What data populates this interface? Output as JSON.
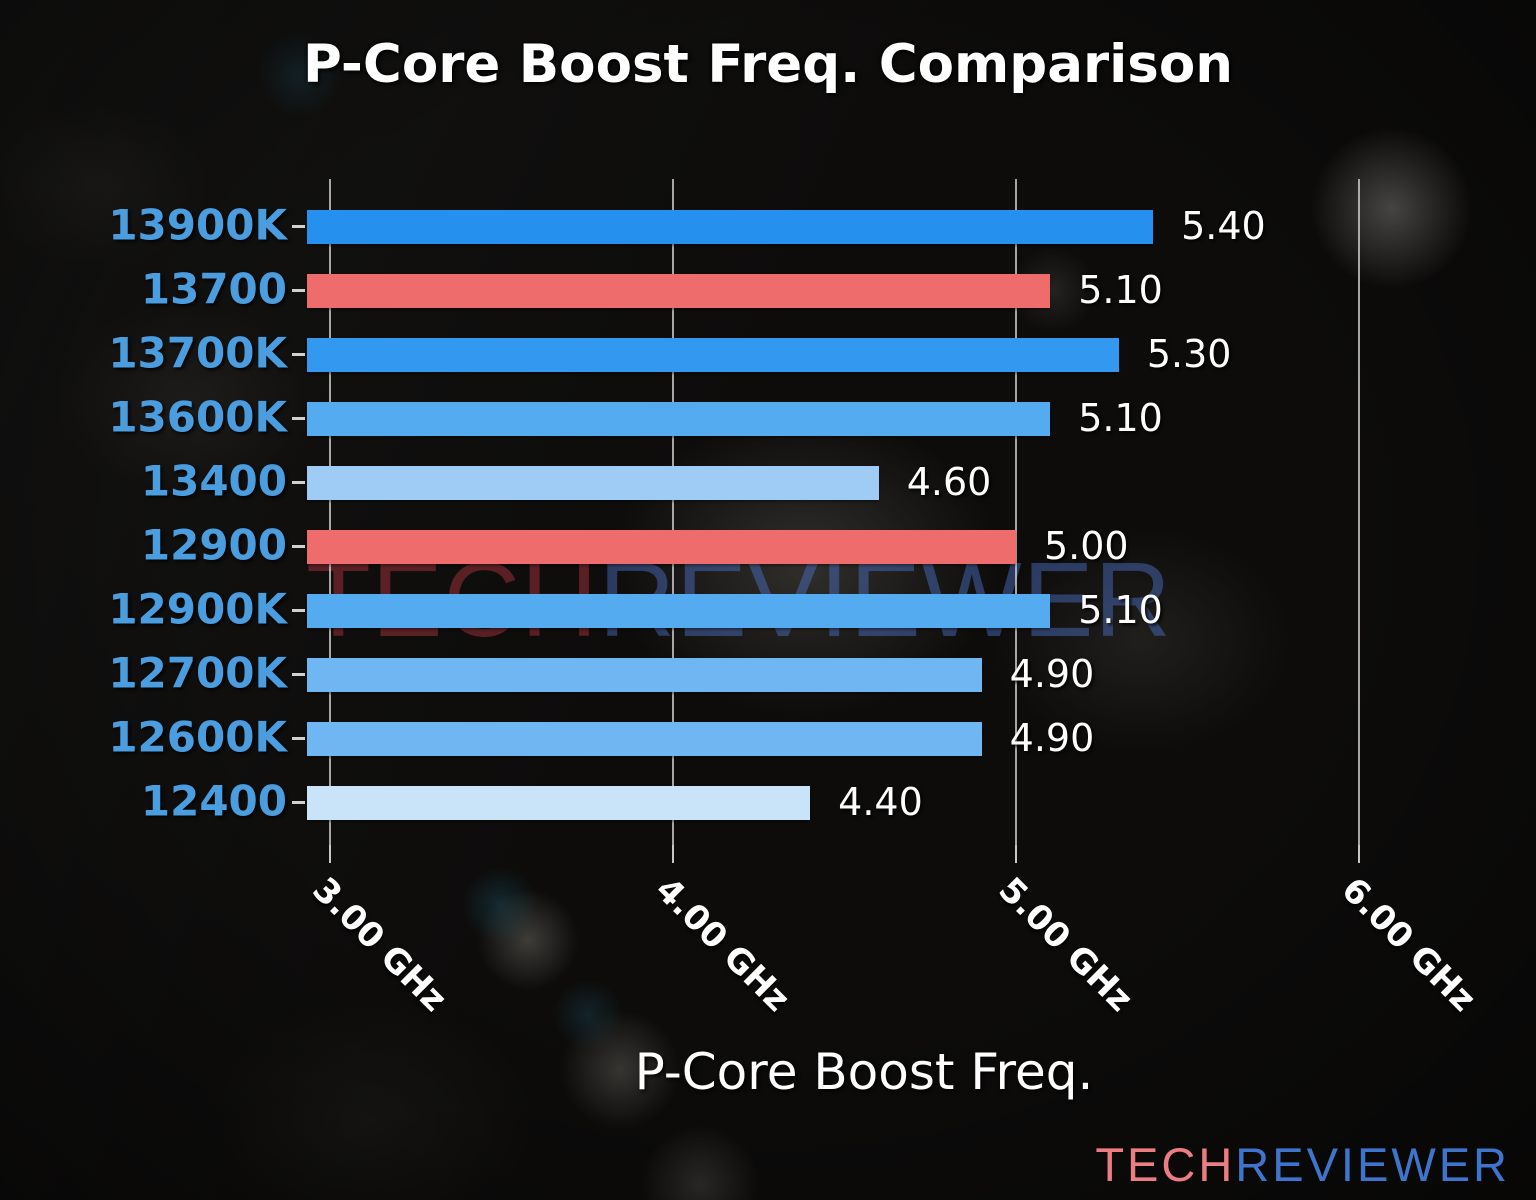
{
  "chart_data": {
    "type": "bar",
    "orientation": "horizontal",
    "title": "P-Core Boost Freq. Comparison",
    "xlabel": "P-Core Boost Freq.",
    "categories": [
      "13900K",
      "13700",
      "13700K",
      "13600K",
      "13400",
      "12900",
      "12900K",
      "12700K",
      "12600K",
      "12400"
    ],
    "values": [
      5.4,
      5.1,
      5.3,
      5.1,
      4.6,
      5.0,
      5.1,
      4.9,
      4.9,
      4.4
    ],
    "value_labels": [
      "5.40",
      "5.10",
      "5.30",
      "5.10",
      "4.60",
      "5.00",
      "5.10",
      "4.90",
      "4.90",
      "4.40"
    ],
    "bar_colors": [
      "#2590ee",
      "#ef6c6c",
      "#3398f0",
      "#55abf0",
      "#9fccf5",
      "#ef6c6c",
      "#55abf0",
      "#6fb6f2",
      "#6fb6f2",
      "#c9e3f8"
    ],
    "highlighted_categories": [
      "13700",
      "12900"
    ],
    "highlight_color": "#ef6c6c",
    "category_label_color": "#4a9edf",
    "value_label_color": "#ffffff",
    "xlim": [
      2.933,
      6.181
    ],
    "xticks": [
      {
        "value": 3.0,
        "label": "3.00 GHz"
      },
      {
        "value": 4.0,
        "label": "4.00 GHz"
      },
      {
        "value": 5.0,
        "label": "5.00 GHz"
      },
      {
        "value": 6.0,
        "label": "6.00 GHz"
      }
    ],
    "grid": true,
    "legend": null
  },
  "watermark": {
    "part1": "TECH",
    "part2": "REVIEWER"
  },
  "logo": {
    "part1": "TECH",
    "part2": "REVIEWER"
  }
}
